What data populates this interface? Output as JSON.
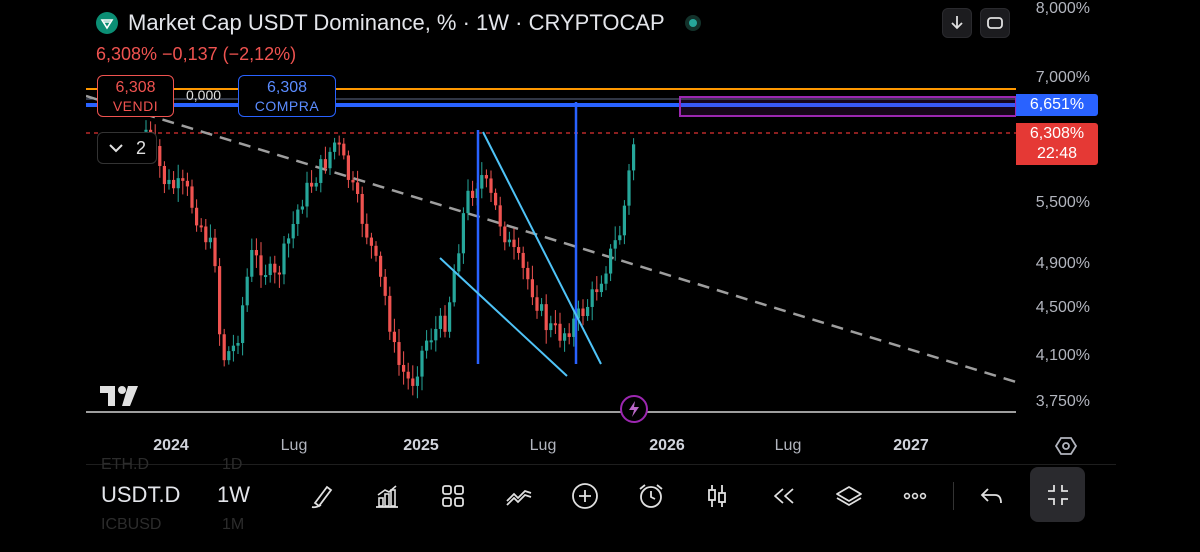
{
  "header": {
    "title": "Market Cap USDT Dominance, % · 1W · CRYPTOCAP",
    "change_line": "6,308%  −0,137 (−2,12%)"
  },
  "trade": {
    "sell_price": "6,308",
    "sell_label": "VENDI",
    "spread": "0,000",
    "buy_price": "6,308",
    "buy_label": "COMPRA"
  },
  "indicators_toggle": {
    "count": "2"
  },
  "y_axis": {
    "labels": [
      "8,000%",
      "7,000%",
      "6,651%",
      "6,308%",
      "5,500%",
      "4,900%",
      "4,500%",
      "4,100%",
      "3,750%"
    ]
  },
  "price_tags": {
    "level": "6,651%",
    "current": "6,308%",
    "countdown": "22:48"
  },
  "x_axis": {
    "labels": [
      "2024",
      "Lug",
      "2025",
      "Lug",
      "2026",
      "Lug",
      "2027"
    ]
  },
  "toolbar": {
    "symbol": "USDT.D",
    "timeframe": "1W",
    "ghost_above_symbol": "ETH.D",
    "ghost_above_tf": "1D",
    "ghost_below_symbol": "ICBUSD",
    "ghost_below_tf": "1M"
  },
  "colors": {
    "up": "#26a69a",
    "down": "#ef5350",
    "orange_level": "#ff9800",
    "blue_level": "#2962ff",
    "purple_box": "#9c27b0",
    "wedge": "#4fc3f7"
  },
  "icons": [
    "download-icon",
    "fullscreen-icon",
    "chevron-down-icon",
    "settings-icon",
    "brush-icon",
    "bar-chart-icon",
    "grid-icon",
    "trend-icon",
    "plus-icon",
    "alarm-icon",
    "candles-icon",
    "rewind-icon",
    "layers-icon",
    "more-icon",
    "undo-icon",
    "collapse-icon",
    "bolt-icon",
    "tradingview-logo"
  ]
}
